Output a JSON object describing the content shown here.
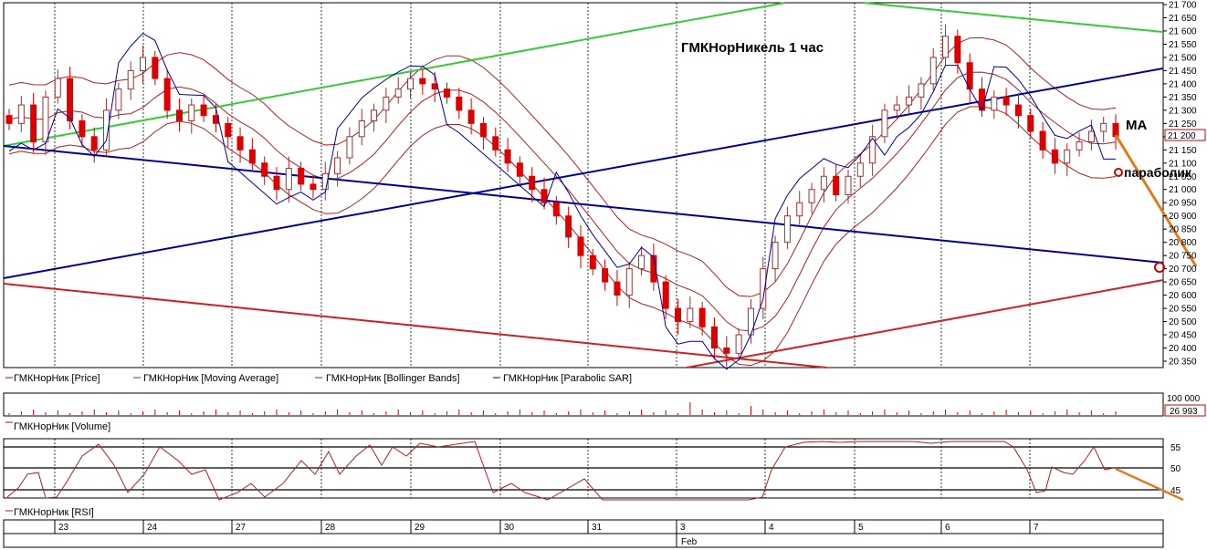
{
  "chart_data": {
    "type": "candlestick",
    "title": "ГМКНорНикель  1 час",
    "annotations": {
      "ma": "MA",
      "parabolic": "параболик"
    },
    "legend": [
      {
        "label": "ГМКНорНик [Price]",
        "color": "#cc0000"
      },
      {
        "label": "ГМКНорНик [Moving Average]",
        "color": "#aa2222"
      },
      {
        "label": "ГМКНорНик [Bollinger Bands]",
        "color": "#aa2222"
      },
      {
        "label": "ГМКНорНик [Parabolic SAR]",
        "color": "#000099"
      }
    ],
    "price_axis": {
      "ylim": [
        20350,
        21700
      ],
      "ticks": [
        20350,
        20400,
        20450,
        20500,
        20550,
        20600,
        20650,
        20700,
        20750,
        20800,
        20850,
        20900,
        20950,
        21000,
        21050,
        21100,
        21150,
        21200,
        21250,
        21300,
        21350,
        21400,
        21450,
        21500,
        21550,
        21600,
        21650,
        21700
      ],
      "tick_labels": [
        "20 350",
        "20 400",
        "20 450",
        "20 500",
        "20 550",
        "20 600",
        "20 650",
        "20 700",
        "20 750",
        "20 800",
        "20 850",
        "20 900",
        "20 950",
        "21 000",
        "21 050",
        "21 100",
        "21 150",
        "21 200",
        "21 250",
        "21 300",
        "21 350",
        "21 400",
        "21 450",
        "21 500",
        "21 550",
        "21 600",
        "21 650",
        "21 700"
      ],
      "last_price": 21200,
      "last_price_label": "21 200"
    },
    "volume_panel": {
      "label": "ГМКНорНик [Volume]",
      "max_tick": "100 000",
      "last_volume": "26 993"
    },
    "rsi_panel": {
      "label": "ГМКНорНик [RSI]",
      "ticks": [
        "55",
        "50",
        "45"
      ],
      "lines": [
        55,
        50,
        45
      ]
    },
    "x_axis": {
      "days": [
        "23",
        "24",
        "27",
        "28",
        "29",
        "30",
        "31",
        "3",
        "4",
        "5",
        "6",
        "7"
      ],
      "month_label": "Feb"
    },
    "close_series": [
      21250,
      21320,
      21180,
      21350,
      21420,
      21260,
      21200,
      21150,
      21300,
      21380,
      21450,
      21500,
      21420,
      21300,
      21260,
      21320,
      21280,
      21250,
      21200,
      21150,
      21100,
      21050,
      21000,
      21080,
      21020,
      21000,
      21060,
      21120,
      21200,
      21260,
      21300,
      21350,
      21380,
      21420,
      21400,
      21380,
      21350,
      21300,
      21250,
      21200,
      21150,
      21100,
      21050,
      21000,
      20950,
      20900,
      20820,
      20750,
      20700,
      20650,
      20600,
      20700,
      20750,
      20650,
      20550,
      20500,
      20550,
      20480,
      20400,
      20380,
      20450,
      20550,
      20700,
      20800,
      20900,
      20950,
      21000,
      21050,
      20980,
      21050,
      21100,
      21200,
      21300,
      21320,
      21350,
      21400,
      21500,
      21580,
      21480,
      21380,
      21300,
      21350,
      21320,
      21280,
      21220,
      21150,
      21100,
      21150,
      21180,
      21220,
      21250,
      21200
    ]
  }
}
